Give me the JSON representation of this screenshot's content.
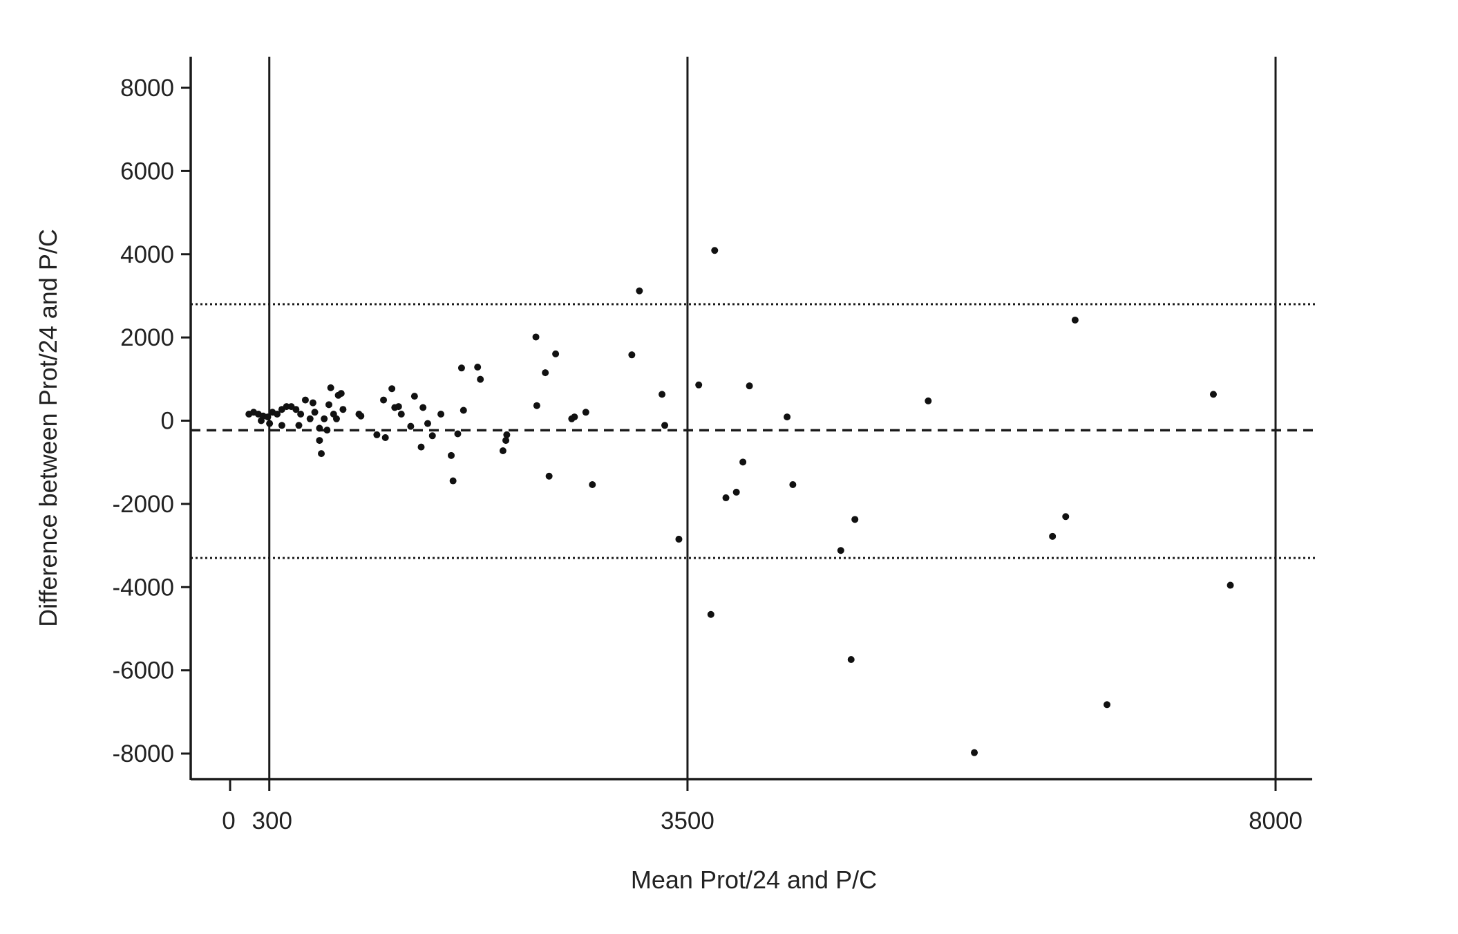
{
  "chart_data": {
    "type": "scatter",
    "title": "",
    "xlabel": "Mean Prot/24 and P/C",
    "ylabel": "Difference between Prot/24 and P/C",
    "xlim": [
      -300,
      8200
    ],
    "ylim": [
      -8600,
      8800
    ],
    "x_ticks": [
      0,
      300,
      3500,
      8000
    ],
    "x_tick_labels": [
      "0",
      "300",
      "3500",
      "8000"
    ],
    "y_ticks": [
      8000,
      6000,
      4000,
      2000,
      0,
      -2000,
      -4000,
      -6000,
      -8000
    ],
    "y_tick_labels": [
      "8000",
      "6000",
      "4000",
      "2000",
      "0",
      "-2000",
      "-4000",
      "-6000",
      "-8000"
    ],
    "grid": false,
    "reference_lines": {
      "mean_difference": -230,
      "upper_limit_of_agreement": 2800,
      "lower_limit_of_agreement": -3300,
      "vertical_lines_x": [
        300,
        3500,
        8000
      ]
    },
    "points": [
      [
        144,
        158
      ],
      [
        180,
        203
      ],
      [
        216,
        158
      ],
      [
        252,
        113
      ],
      [
        288,
        90
      ],
      [
        324,
        203
      ],
      [
        360,
        158
      ],
      [
        396,
        271
      ],
      [
        432,
        339
      ],
      [
        468,
        339
      ],
      [
        504,
        271
      ],
      [
        540,
        158
      ],
      [
        576,
        497
      ],
      [
        612,
        45
      ],
      [
        648,
        203
      ],
      [
        684,
        -181
      ],
      [
        698,
        -791
      ],
      [
        684,
        -475
      ],
      [
        720,
        45
      ],
      [
        756,
        384
      ],
      [
        770,
        791
      ],
      [
        792,
        158
      ],
      [
        814,
        45
      ],
      [
        828,
        610
      ],
      [
        850,
        655
      ],
      [
        864,
        271
      ],
      [
        238,
        0
      ],
      [
        302,
        -68
      ],
      [
        396,
        -113
      ],
      [
        526,
        -113
      ],
      [
        634,
        429
      ],
      [
        742,
        -226
      ],
      [
        986,
        158
      ],
      [
        1001,
        113
      ],
      [
        1123,
        -339
      ],
      [
        1174,
        497
      ],
      [
        1188,
        -407
      ],
      [
        1238,
        768
      ],
      [
        1260,
        316
      ],
      [
        1289,
        339
      ],
      [
        1310,
        158
      ],
      [
        1382,
        -136
      ],
      [
        1411,
        588
      ],
      [
        1462,
        -633
      ],
      [
        1476,
        316
      ],
      [
        1512,
        -68
      ],
      [
        1548,
        -362
      ],
      [
        1613,
        158
      ],
      [
        1692,
        -836
      ],
      [
        1706,
        -1446
      ],
      [
        1742,
        -316
      ],
      [
        1771,
        1266
      ],
      [
        1786,
        249
      ],
      [
        1894,
        1288
      ],
      [
        1915,
        994
      ],
      [
        2088,
        -723
      ],
      [
        2110,
        -475
      ],
      [
        2117,
        -339
      ],
      [
        2340,
        2011
      ],
      [
        2347,
        362
      ],
      [
        2412,
        1153
      ],
      [
        2441,
        -1333
      ],
      [
        2491,
        1605
      ],
      [
        2614,
        45
      ],
      [
        2635,
        90
      ],
      [
        2722,
        203
      ],
      [
        2772,
        -1537
      ],
      [
        3074,
        1582
      ],
      [
        3132,
        3119
      ],
      [
        3305,
        633
      ],
      [
        3326,
        -113
      ],
      [
        3434,
        -2848
      ],
      [
        3586,
        859
      ],
      [
        3679,
        -4656
      ],
      [
        3708,
        4091
      ],
      [
        3794,
        -1853
      ],
      [
        3874,
        -1718
      ],
      [
        3924,
        -994
      ],
      [
        3974,
        836
      ],
      [
        4262,
        90
      ],
      [
        4306,
        -1537
      ],
      [
        4673,
        -3119
      ],
      [
        4752,
        -5740
      ],
      [
        4781,
        -2373
      ],
      [
        5342,
        475
      ],
      [
        5695,
        -7978
      ],
      [
        6293,
        -2780
      ],
      [
        6394,
        -2305
      ],
      [
        6466,
        2418
      ],
      [
        6710,
        -6825
      ],
      [
        7524,
        633
      ],
      [
        7654,
        -3955
      ]
    ],
    "colors": {
      "points": "#111111",
      "lines": "#1a1a1a"
    }
  }
}
